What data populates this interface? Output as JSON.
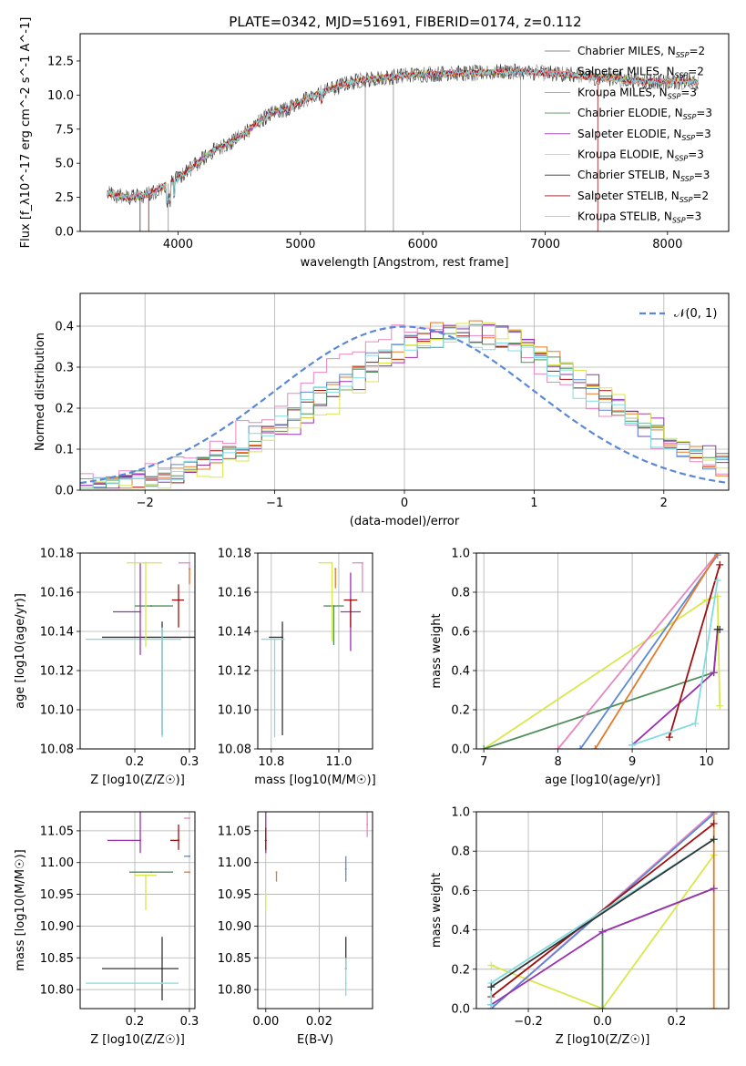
{
  "title": "PLATE=0342, MJD=51691, FIBERID=0174, z=0.112",
  "colors": {
    "chabrier_miles": "#8c8c8c",
    "salpeter_miles": "#f08080",
    "kroupa_miles": "#d4a017",
    "chabrier_elodie": "#4f8f5a",
    "salpeter_elodie": "#9b30b0",
    "kroupa_elodie": "#d8e84a",
    "chabrier_stelib": "#333333",
    "salpeter_stelib": "#a01010",
    "kroupa_stelib": "#80dce0",
    "normal_curve": "#5a88d8",
    "extra_orange": "#e57a2a",
    "extra_blue": "#5a88d8",
    "extra_pink": "#e787c0"
  },
  "chart_data": [
    {
      "id": "spectrum",
      "type": "line",
      "xlabel": "wavelength [Angstrom, rest frame]",
      "ylabel": "Flux [f_λ10^-17 erg cm^-2 s^-1 A^-1]",
      "xlim": [
        3200,
        8500
      ],
      "ylim": [
        0,
        14.5
      ],
      "xticks": [
        "4000",
        "5000",
        "6000",
        "7000",
        "8000"
      ],
      "yticks": [
        "0.0",
        "2.5",
        "5.0",
        "7.5",
        "10.0",
        "12.5"
      ],
      "grid": false,
      "legend_position": "top-right",
      "continuum": {
        "x": [
          3420,
          3500,
          3600,
          3700,
          3800,
          3900,
          4000,
          4100,
          4200,
          4300,
          4400,
          4500,
          4600,
          4700,
          4800,
          4900,
          5000,
          5100,
          5200,
          5300,
          5400,
          5500,
          5600,
          5700,
          5800,
          5900,
          6000,
          6200,
          6400,
          6600,
          6800,
          7000,
          7200,
          7400,
          7600,
          7800,
          8000,
          8200,
          8250
        ],
        "y": [
          2.8,
          2.6,
          2.5,
          2.6,
          2.9,
          3.4,
          3.9,
          4.6,
          5.3,
          6.0,
          6.4,
          6.9,
          7.6,
          8.3,
          8.8,
          9.0,
          9.5,
          9.9,
          10.3,
          10.6,
          10.9,
          11.1,
          11.2,
          11.3,
          11.4,
          11.5,
          11.5,
          11.6,
          11.6,
          11.7,
          11.7,
          11.6,
          11.5,
          11.3,
          11.2,
          11.0,
          11.0,
          11.0,
          10.9
        ]
      },
      "series": [
        {
          "name": "Chabrier MILES, N_SSP=2",
          "color_key": "chabrier_miles"
        },
        {
          "name": "Salpeter MILES, N_SSP=2",
          "color_key": "salpeter_miles"
        },
        {
          "name": "Kroupa MILES, N_SSP=3",
          "color_key": "kroupa_miles"
        },
        {
          "name": "Chabrier ELODIE, N_SSP=3",
          "color_key": "chabrier_elodie"
        },
        {
          "name": "Salpeter ELODIE, N_SSP=3",
          "color_key": "salpeter_elodie"
        },
        {
          "name": "Kroupa ELODIE, N_SSP=3",
          "color_key": "kroupa_elodie"
        },
        {
          "name": "Chabrier STELIB, N_SSP=3",
          "color_key": "chabrier_stelib"
        },
        {
          "name": "Salpeter STELIB, N_SSP=2",
          "color_key": "salpeter_stelib"
        },
        {
          "name": "Kroupa STELIB, N_SSP=3",
          "color_key": "kroupa_stelib"
        }
      ]
    },
    {
      "id": "residuals",
      "type": "line",
      "xlabel": "(data-model)/error",
      "ylabel": "Normed distribution",
      "xlim": [
        -2.5,
        2.5
      ],
      "ylim": [
        0,
        0.48
      ],
      "xticks": [
        "−2",
        "−1",
        "0",
        "1",
        "2"
      ],
      "yticks": [
        "0.0",
        "0.1",
        "0.2",
        "0.3",
        "0.4"
      ],
      "grid": true,
      "legend_position": "top-right",
      "legend_label": "𝒩(0, 1)",
      "gaussian": {
        "mean": 0,
        "sigma": 1
      },
      "hist_bin_width": 0.1,
      "hist_series": [
        {
          "color_key": "salpeter_stelib",
          "shift": 0.45,
          "sigma": 1.05,
          "scale": 0.355
        },
        {
          "color_key": "extra_orange",
          "shift": 0.45,
          "sigma": 1.02,
          "scale": 0.375
        },
        {
          "color_key": "extra_pink",
          "shift": 0.25,
          "sigma": 1.08,
          "scale": 0.37
        },
        {
          "color_key": "extra_blue",
          "shift": 0.4,
          "sigma": 1.05,
          "scale": 0.37
        },
        {
          "color_key": "salpeter_elodie",
          "shift": 0.55,
          "sigma": 1.03,
          "scale": 0.36
        },
        {
          "color_key": "chabrier_elodie",
          "shift": 0.45,
          "sigma": 1.07,
          "scale": 0.35
        },
        {
          "color_key": "kroupa_elodie",
          "shift": 0.55,
          "sigma": 1.0,
          "scale": 0.36
        },
        {
          "color_key": "kroupa_stelib",
          "shift": 0.4,
          "sigma": 1.05,
          "scale": 0.35
        }
      ]
    },
    {
      "id": "z_age",
      "type": "scatter",
      "xlabel": "Z [log10(Z/Z☉)]",
      "ylabel": "age  [log10(age/yr)]",
      "xlim": [
        0.1,
        0.31
      ],
      "ylim": [
        10.08,
        10.18
      ],
      "xticks": [
        "0.2",
        "0.3"
      ],
      "yticks": [
        "10.08",
        "10.10",
        "10.12",
        "10.14",
        "10.16",
        "10.18"
      ],
      "grid": true,
      "points": [
        {
          "color_key": "chabrier_stelib",
          "x": 0.25,
          "y": 10.137,
          "xerr": [
            0.11,
            0.08
          ],
          "yerr": [
            0.05,
            0.008
          ]
        },
        {
          "color_key": "kroupa_stelib",
          "x": 0.25,
          "y": 10.136,
          "xerr": [
            0.14,
            0.035
          ],
          "yerr": [
            0.05,
            0.006
          ]
        },
        {
          "color_key": "chabrier_elodie",
          "x": 0.23,
          "y": 10.153,
          "xerr": [
            0.03,
            0.04
          ],
          "yerr": [
            0.0,
            0.0
          ]
        },
        {
          "color_key": "salpeter_elodie",
          "x": 0.21,
          "y": 10.15,
          "xerr": [
            0.05,
            0.0
          ],
          "yerr": [
            0.022,
            0.025
          ]
        },
        {
          "color_key": "kroupa_elodie",
          "x": 0.22,
          "y": 10.175,
          "xerr": [
            0.035,
            0.03
          ],
          "yerr": [
            0.043,
            0.0
          ]
        },
        {
          "color_key": "salpeter_stelib",
          "x": 0.28,
          "y": 10.156,
          "xerr": [
            0.012,
            0.01
          ],
          "yerr": [
            0.014,
            0.008
          ]
        },
        {
          "color_key": "extra_pink",
          "x": 0.3,
          "y": 10.175,
          "xerr": [
            0.02,
            0.0
          ],
          "yerr": [
            0.01,
            0.0
          ]
        },
        {
          "color_key": "extra_orange",
          "x": 0.3,
          "y": 10.172,
          "xerr": [
            0.0,
            0.0
          ],
          "yerr": [
            0.008,
            0.0
          ]
        }
      ]
    },
    {
      "id": "mass_age",
      "type": "scatter",
      "xlabel": "mass [log10(M/M☉)]",
      "ylabel": "",
      "xlim": [
        10.76,
        11.1
      ],
      "ylim": [
        10.08,
        10.18
      ],
      "xticks": [
        "10.8",
        "11.0"
      ],
      "yticks": [
        "10.08",
        "10.10",
        "10.12",
        "10.14",
        "10.16",
        "10.18"
      ],
      "grid": true,
      "points": [
        {
          "color_key": "chabrier_stelib",
          "x": 10.833,
          "y": 10.137,
          "xerr": [
            0.04,
            0.0
          ],
          "yerr": [
            0.05,
            0.008
          ]
        },
        {
          "color_key": "kroupa_stelib",
          "x": 10.81,
          "y": 10.136,
          "xerr": [
            0.04,
            0.03
          ],
          "yerr": [
            0.05,
            0.0
          ]
        },
        {
          "color_key": "chabrier_elodie",
          "x": 10.985,
          "y": 10.153,
          "xerr": [
            0.03,
            0.03
          ],
          "yerr": [
            0.02,
            0.0
          ]
        },
        {
          "color_key": "salpeter_elodie",
          "x": 11.035,
          "y": 10.15,
          "xerr": [
            0.03,
            0.03
          ],
          "yerr": [
            0.02,
            0.02
          ]
        },
        {
          "color_key": "kroupa_elodie",
          "x": 10.98,
          "y": 10.175,
          "xerr": [
            0.04,
            0.0
          ],
          "yerr": [
            0.04,
            0.0
          ]
        },
        {
          "color_key": "salpeter_stelib",
          "x": 11.035,
          "y": 10.156,
          "xerr": [
            0.02,
            0.02
          ],
          "yerr": [
            0.014,
            0.0
          ]
        },
        {
          "color_key": "extra_pink",
          "x": 11.07,
          "y": 10.175,
          "xerr": [
            0.03,
            0.0
          ],
          "yerr": [
            0.015,
            0.0
          ]
        },
        {
          "color_key": "extra_orange",
          "x": 10.99,
          "y": 10.172,
          "xerr": [
            0.0,
            0.0
          ],
          "yerr": [
            0.01,
            0.0
          ]
        }
      ]
    },
    {
      "id": "age_weight",
      "type": "line",
      "xlabel": "age  [log10(age/yr)]",
      "ylabel": "mass weight",
      "xlim": [
        6.9,
        10.3
      ],
      "ylim": [
        0,
        1.0
      ],
      "xticks": [
        "7",
        "8",
        "9",
        "10"
      ],
      "yticks": [
        "0.0",
        "0.2",
        "0.4",
        "0.6",
        "0.8",
        "1.0"
      ],
      "grid": true,
      "series": [
        {
          "color_key": "kroupa_elodie",
          "x": [
            7.0,
            10.0,
            10.15,
            10.18
          ],
          "y": [
            0.0,
            0.76,
            0.78,
            0.22
          ]
        },
        {
          "color_key": "chabrier_elodie",
          "x": [
            7.0,
            10.1,
            10.15
          ],
          "y": [
            0.0,
            0.39,
            0.61
          ]
        },
        {
          "color_key": "extra_pink",
          "x": [
            8.0,
            10.15
          ],
          "y": [
            0.0,
            1.0
          ]
        },
        {
          "color_key": "extra_blue",
          "x": [
            8.3,
            10.15
          ],
          "y": [
            0.0,
            0.99
          ]
        },
        {
          "color_key": "extra_orange",
          "x": [
            8.5,
            10.15
          ],
          "y": [
            0.0,
            1.0
          ]
        },
        {
          "color_key": "salpeter_elodie",
          "x": [
            9.0,
            10.1,
            10.15
          ],
          "y": [
            0.02,
            0.39,
            0.61
          ]
        },
        {
          "color_key": "salpeter_stelib",
          "x": [
            9.5,
            10.18
          ],
          "y": [
            0.06,
            0.94
          ]
        },
        {
          "color_key": "kroupa_stelib",
          "x": [
            9.0,
            9.85,
            10.15
          ],
          "y": [
            0.02,
            0.13,
            0.86
          ]
        },
        {
          "color_key": "chabrier_stelib",
          "x": [
            10.15,
            10.18
          ],
          "y": [
            0.61,
            0.61
          ]
        }
      ]
    },
    {
      "id": "z_mass",
      "type": "scatter",
      "xlabel": "Z [log10(Z/Z☉)]",
      "ylabel": "mass [log10(M/M☉)]",
      "xlim": [
        0.1,
        0.31
      ],
      "ylim": [
        10.77,
        11.08
      ],
      "xticks": [
        "0.2",
        "0.3"
      ],
      "yticks": [
        "10.80",
        "10.85",
        "10.90",
        "10.95",
        "11.00",
        "11.05"
      ],
      "grid": true,
      "points": [
        {
          "color_key": "chabrier_stelib",
          "x": 0.25,
          "y": 10.833,
          "xerr": [
            0.11,
            0.03
          ],
          "yerr": [
            0.05,
            0.05
          ]
        },
        {
          "color_key": "kroupa_stelib",
          "x": 0.25,
          "y": 10.81,
          "xerr": [
            0.14,
            0.03
          ],
          "yerr": [
            0.0,
            0.0
          ]
        },
        {
          "color_key": "chabrier_elodie",
          "x": 0.23,
          "y": 10.985,
          "xerr": [
            0.04,
            0.04
          ],
          "yerr": [
            0.0,
            0.0
          ]
        },
        {
          "color_key": "salpeter_elodie",
          "x": 0.21,
          "y": 11.035,
          "xerr": [
            0.06,
            0.0
          ],
          "yerr": [
            0.02,
            0.045
          ]
        },
        {
          "color_key": "kroupa_elodie",
          "x": 0.22,
          "y": 10.98,
          "xerr": [
            0.02,
            0.02
          ],
          "yerr": [
            0.055,
            0.0
          ]
        },
        {
          "color_key": "salpeter_stelib",
          "x": 0.28,
          "y": 11.035,
          "xerr": [
            0.015,
            0.0
          ],
          "yerr": [
            0.015,
            0.025
          ]
        },
        {
          "color_key": "extra_blue",
          "x": 0.3,
          "y": 11.01,
          "xerr": [
            0.01,
            0.0
          ],
          "yerr": [
            0.0,
            0.0
          ]
        },
        {
          "color_key": "extra_pink",
          "x": 0.3,
          "y": 11.07,
          "xerr": [
            0.01,
            0.0
          ],
          "yerr": [
            0.0,
            0.0
          ]
        },
        {
          "color_key": "extra_orange",
          "x": 0.3,
          "y": 10.985,
          "xerr": [
            0.01,
            0.0
          ],
          "yerr": [
            0.0,
            0.0
          ]
        }
      ]
    },
    {
      "id": "ebv_mass",
      "type": "scatter",
      "xlabel": "E(B-V)",
      "ylabel": "",
      "xlim": [
        -0.003,
        0.04
      ],
      "ylim": [
        10.77,
        11.08
      ],
      "xticks": [
        "0.00",
        "0.02"
      ],
      "yticks": [
        "10.80",
        "10.85",
        "10.90",
        "10.95",
        "11.00",
        "11.05"
      ],
      "grid": true,
      "points": [
        {
          "color_key": "chabrier_stelib",
          "x": 0.03,
          "y": 10.833,
          "yerr": [
            0.0,
            0.05
          ]
        },
        {
          "color_key": "kroupa_stelib",
          "x": 0.03,
          "y": 10.81,
          "yerr": [
            0.02,
            0.04
          ]
        },
        {
          "color_key": "extra_blue",
          "x": 0.03,
          "y": 10.99,
          "yerr": [
            0.02,
            0.02
          ]
        },
        {
          "color_key": "salpeter_elodie",
          "x": 0.0,
          "y": 11.035,
          "yerr": [
            0.02,
            0.045
          ]
        },
        {
          "color_key": "salpeter_stelib",
          "x": 0.0,
          "y": 11.035,
          "yerr": [
            0.015,
            0.02
          ]
        },
        {
          "color_key": "kroupa_elodie",
          "x": 0.0,
          "y": 10.95,
          "yerr": [
            0.025,
            0.0
          ]
        },
        {
          "color_key": "extra_orange",
          "x": 0.004,
          "y": 10.985,
          "yerr": [
            0.015,
            0.0
          ]
        },
        {
          "color_key": "extra_pink",
          "x": 0.038,
          "y": 11.06,
          "yerr": [
            0.02,
            0.02
          ]
        }
      ]
    },
    {
      "id": "z_weight",
      "type": "line",
      "xlabel": "Z [log10(Z/Z☉)]",
      "ylabel": "mass weight",
      "xlim": [
        -0.34,
        0.34
      ],
      "ylim": [
        0,
        1.0
      ],
      "xticks": [
        "−0.2",
        "0.0",
        "0.2"
      ],
      "yticks": [
        "0.0",
        "0.2",
        "0.4",
        "0.6",
        "0.8",
        "1.0"
      ],
      "grid": true,
      "series": [
        {
          "color_key": "kroupa_elodie",
          "x": [
            -0.3,
            0.0,
            0.3
          ],
          "y": [
            0.22,
            0.0,
            0.78
          ]
        },
        {
          "color_key": "chabrier_elodie",
          "x": [
            0.0,
            0.0,
            0.3
          ],
          "y": [
            0.0,
            0.39,
            0.61
          ]
        },
        {
          "color_key": "extra_pink",
          "x": [
            -0.3,
            0.3
          ],
          "y": [
            0.0,
            1.0
          ]
        },
        {
          "color_key": "extra_blue",
          "x": [
            -0.3,
            0.3
          ],
          "y": [
            0.0,
            0.99
          ]
        },
        {
          "color_key": "extra_orange",
          "x": [
            0.3,
            0.3
          ],
          "y": [
            0.0,
            1.0
          ]
        },
        {
          "color_key": "salpeter_elodie",
          "x": [
            -0.3,
            0.0,
            0.3
          ],
          "y": [
            0.02,
            0.39,
            0.61
          ]
        },
        {
          "color_key": "salpeter_stelib",
          "x": [
            -0.3,
            0.3
          ],
          "y": [
            0.06,
            0.94
          ]
        },
        {
          "color_key": "kroupa_stelib",
          "x": [
            -0.3,
            -0.3,
            0.3
          ],
          "y": [
            0.02,
            0.13,
            0.86
          ]
        },
        {
          "color_key": "chabrier_stelib",
          "x": [
            -0.3,
            0.3
          ],
          "y": [
            0.11,
            0.86
          ]
        }
      ]
    }
  ]
}
